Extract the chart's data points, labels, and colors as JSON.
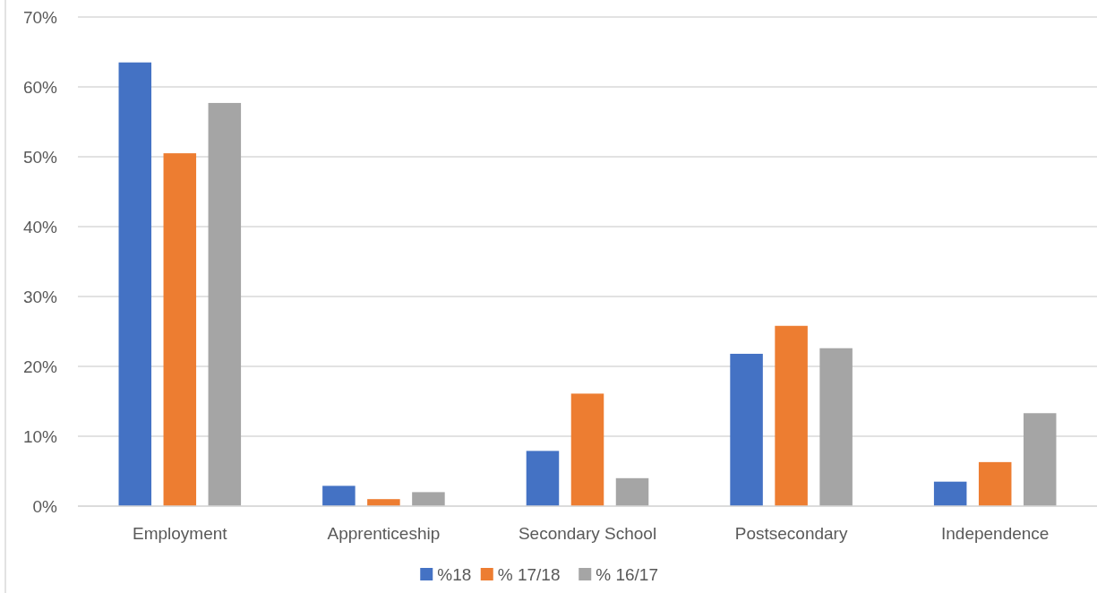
{
  "chart_data": {
    "type": "bar",
    "categories": [
      "Employment",
      "Apprenticeship",
      "Secondary School",
      "Postsecondary",
      "Independence"
    ],
    "series": [
      {
        "name": "%18",
        "color": "#4472c4",
        "values": [
          63.5,
          2.9,
          7.9,
          21.8,
          3.5
        ]
      },
      {
        "name": "% 17/18",
        "color": "#ed7d31",
        "values": [
          50.5,
          1.0,
          16.1,
          25.8,
          6.3
        ]
      },
      {
        "name": "% 16/17",
        "color": "#a5a5a5",
        "values": [
          57.7,
          2.0,
          4.0,
          22.6,
          13.3
        ]
      }
    ],
    "ylim": [
      0,
      70
    ],
    "yticks": [
      {
        "value": 0,
        "label": "0%"
      },
      {
        "value": 10,
        "label": "10%"
      },
      {
        "value": 20,
        "label": "20%"
      },
      {
        "value": 30,
        "label": "30%"
      },
      {
        "value": 40,
        "label": "40%"
      },
      {
        "value": 50,
        "label": "50%"
      },
      {
        "value": 60,
        "label": "60%"
      },
      {
        "value": 70,
        "label": "70%"
      }
    ],
    "grid": "y",
    "legend": "bottom"
  }
}
